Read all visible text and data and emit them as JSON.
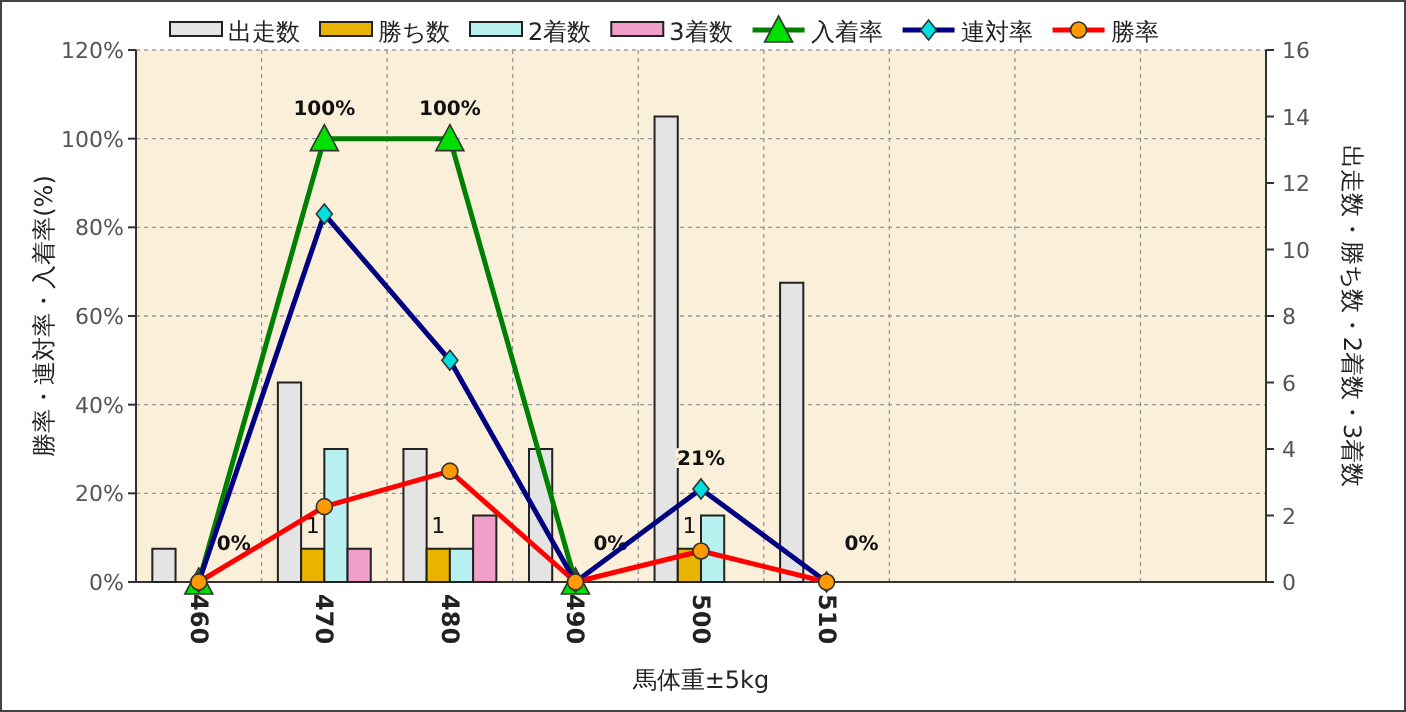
{
  "chart_data": {
    "type": "bar",
    "categories": [
      "460",
      "470",
      "480",
      "490",
      "500",
      "510",
      null,
      null,
      null
    ],
    "xlabel": "馬体重±5kg",
    "ylabel": "勝率・連対率・入着率(%)",
    "y2label": "出走数・勝ち数・2着数・3着数",
    "ylim": [
      0,
      120
    ],
    "yticks": [
      {
        "value": 0,
        "label": "0%"
      },
      {
        "value": 20,
        "label": "20%"
      },
      {
        "value": 40,
        "label": "40%"
      },
      {
        "value": 60,
        "label": "60%"
      },
      {
        "value": 80,
        "label": "80%"
      },
      {
        "value": 100,
        "label": "100%"
      },
      {
        "value": 120,
        "label": "120%"
      }
    ],
    "y2lim": [
      0,
      16
    ],
    "y2ticks": [
      0,
      2,
      4,
      6,
      8,
      10,
      12,
      14,
      16
    ],
    "grid": true,
    "legend": "top",
    "series": [
      {
        "name": "出走数",
        "type": "bar",
        "axis": "y2",
        "color": "#e4e4e4",
        "values": [
          1,
          6,
          4,
          4,
          14,
          9,
          null,
          null,
          null
        ]
      },
      {
        "name": "勝ち数",
        "axis": "y2",
        "color": "#e8b400",
        "values": [
          0,
          1,
          1,
          0,
          1,
          0,
          null,
          null,
          null
        ],
        "value_labels": [
          null,
          "1",
          "1",
          null,
          "1",
          null,
          null,
          null,
          null
        ]
      },
      {
        "name": "2着数",
        "axis": "y2",
        "color": "#b8f0f0",
        "values": [
          0,
          4,
          1,
          0,
          2,
          0,
          null,
          null,
          null
        ]
      },
      {
        "name": "3着数",
        "axis": "y2",
        "color": "#f0a0c8",
        "values": [
          0,
          1,
          2,
          0,
          0,
          0,
          null,
          null,
          null
        ]
      },
      {
        "name": "入着率",
        "type": "line",
        "marker": "triangle",
        "color": "#008000",
        "values": [
          0,
          100,
          100,
          0,
          null,
          null,
          null,
          null,
          null
        ],
        "value_labels": [
          "0%",
          "100%",
          "100%",
          "0%",
          null,
          null,
          null,
          null,
          null
        ]
      },
      {
        "name": "連対率",
        "type": "line",
        "marker": "diamond",
        "color": "#000080",
        "values": [
          0,
          83,
          50,
          0,
          21,
          0,
          null,
          null,
          null
        ],
        "value_labels": [
          null,
          null,
          null,
          null,
          "21%",
          null,
          null,
          null,
          null
        ]
      },
      {
        "name": "勝率",
        "type": "line",
        "marker": "circle",
        "color": "#ff0000",
        "values": [
          0,
          17,
          25,
          0,
          7,
          0,
          null,
          null,
          null
        ],
        "value_labels": [
          null,
          null,
          null,
          null,
          null,
          "0%",
          null,
          null,
          null
        ]
      }
    ]
  }
}
